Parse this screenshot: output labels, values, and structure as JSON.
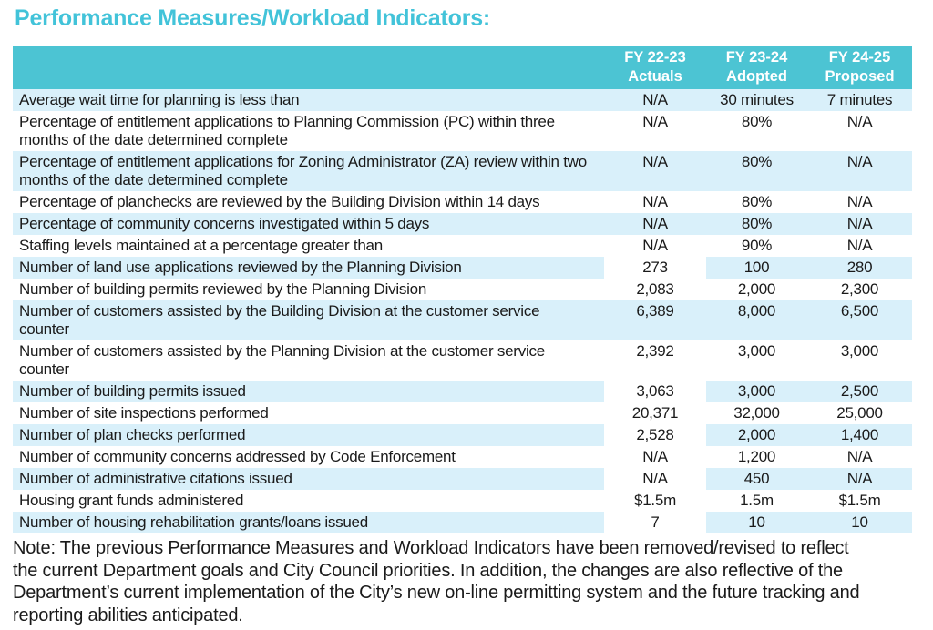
{
  "title": "Performance Measures/Workload Indicators:",
  "colors": {
    "teal": "#4CC4D3",
    "title_teal": "#42C3D9",
    "light_blue": "#D9F0FA",
    "header_text": "#FFFFFF",
    "text": "#1A1A1A"
  },
  "table": {
    "columns": [
      {
        "line1": "FY 22-23",
        "line2": "Actuals"
      },
      {
        "line1": "FY 23-24",
        "line2": "Adopted"
      },
      {
        "line1": "FY 24-25",
        "line2": "Proposed"
      }
    ],
    "rows": [
      {
        "label": "Average wait time for planning is less than",
        "values": [
          "N/A",
          "30 minutes",
          "7 minutes"
        ],
        "shade": "blue",
        "split": false
      },
      {
        "label": "Percentage of entitlement applications to Planning Commission (PC) within three months of the date determined complete",
        "values": [
          "N/A",
          "80%",
          "N/A"
        ],
        "shade": "white",
        "split": false
      },
      {
        "label": "Percentage of entitlement applications for Zoning Administrator (ZA) review within two months of the date determined complete",
        "values": [
          "N/A",
          "80%",
          "N/A"
        ],
        "shade": "blue",
        "split": false
      },
      {
        "label": "Percentage of planchecks are reviewed by the Building Division within 14 days",
        "values": [
          "N/A",
          "80%",
          "N/A"
        ],
        "shade": "white",
        "split": false
      },
      {
        "label": "Percentage of community concerns investigated within 5 days",
        "values": [
          "N/A",
          "80%",
          "N/A"
        ],
        "shade": "blue",
        "split": false
      },
      {
        "label": "Staffing levels maintained at a percentage greater than",
        "values": [
          "N/A",
          "90%",
          "N/A"
        ],
        "shade": "white",
        "split": false
      },
      {
        "label": "Number of land use applications reviewed by the Planning Division",
        "values": [
          "273",
          "100",
          "280"
        ],
        "shade": "blue",
        "split": true
      },
      {
        "label": "Number of building permits reviewed by the Planning Division",
        "values": [
          "2,083",
          "2,000",
          "2,300"
        ],
        "shade": "white",
        "split": false
      },
      {
        "label": "Number of customers assisted by the Building Division at the customer service counter",
        "values": [
          "6,389",
          "8,000",
          "6,500"
        ],
        "shade": "blue",
        "split": false
      },
      {
        "label": "Number of customers assisted by the Planning Division at the customer service counter",
        "values": [
          "2,392",
          "3,000",
          "3,000"
        ],
        "shade": "white",
        "split": false
      },
      {
        "label": "Number of building permits issued",
        "values": [
          "3,063",
          "3,000",
          "2,500"
        ],
        "shade": "blue",
        "split": true
      },
      {
        "label": "Number of site inspections performed",
        "values": [
          "20,371",
          "32,000",
          "25,000"
        ],
        "shade": "white",
        "split": false
      },
      {
        "label": "Number of plan checks performed",
        "values": [
          "2,528",
          "2,000",
          "1,400"
        ],
        "shade": "blue",
        "split": true
      },
      {
        "label": "Number of community concerns addressed by Code Enforcement",
        "values": [
          "N/A",
          "1,200",
          "N/A"
        ],
        "shade": "white",
        "split": false
      },
      {
        "label": "Number of administrative citations issued",
        "values": [
          "N/A",
          "450",
          "N/A"
        ],
        "shade": "blue",
        "split": true
      },
      {
        "label": "Housing grant funds administered",
        "values": [
          "$1.5m",
          "1.5m",
          "$1.5m"
        ],
        "shade": "white",
        "split": false
      },
      {
        "label": "Number of housing rehabilitation grants/loans issued",
        "values": [
          "7",
          "10",
          "10"
        ],
        "shade": "blue",
        "split": true
      }
    ]
  },
  "note": {
    "lines": [
      "Note: The previous Performance Measures and Workload Indicators have been removed/revised to reflect",
      "the current Department goals and City Council priorities. In addition, the changes are also reflective of the",
      "Department’s current implementation of the City’s new on-line permitting system and the future tracking and",
      "reporting abilities anticipated."
    ]
  }
}
